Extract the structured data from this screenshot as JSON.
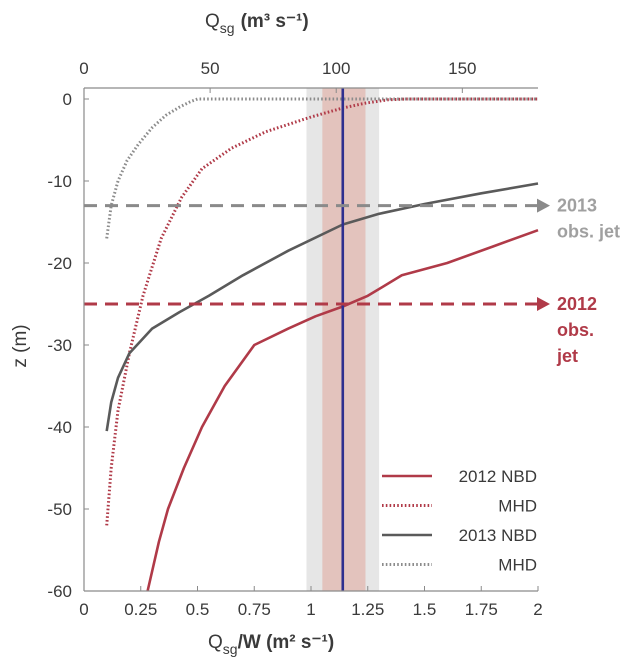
{
  "chart_data": {
    "type": "line",
    "xlabel_bottom": {
      "main": "Q",
      "sub": "sg",
      "rest": "/W (m² s⁻¹)"
    },
    "xlabel_top": {
      "main": "Q",
      "sub": "sg",
      "rest": "(m³ s⁻¹)"
    },
    "ylabel": "z (m)",
    "xlim_bottom": [
      0,
      2
    ],
    "xlim_top": [
      0,
      180
    ],
    "ylim": [
      -60,
      2
    ],
    "xticks_bottom": [
      "0",
      "0.25",
      "0.5",
      "0.75",
      "1",
      "1.25",
      "1.5",
      "1.75",
      "2"
    ],
    "xticks_bottom_values": [
      0,
      0.25,
      0.5,
      0.75,
      1,
      1.25,
      1.5,
      1.75,
      2
    ],
    "xticks_top": [
      "0",
      "50",
      "100",
      "150"
    ],
    "xticks_top_values": [
      0,
      50,
      100,
      150
    ],
    "yticks": [
      "0",
      "-10",
      "-20",
      "-30",
      "-40",
      "-50",
      "-60"
    ],
    "yticks_values": [
      0,
      -10,
      -20,
      -30,
      -40,
      -50,
      -60
    ],
    "grid": false,
    "colors": {
      "red": "#b03a48",
      "gray": "#5a5a5a",
      "lightgray_line": "#8c8c8c",
      "jet2013": "#8a8a8a",
      "jet2013_text": "#a0a0a0",
      "blue": "#2e2f8f",
      "band_outer": "#e6e6e6",
      "band_inner": "#e3c3bd"
    },
    "vertical_line": {
      "x": 1.14
    },
    "bands": [
      {
        "x0": 0.98,
        "x1": 1.3,
        "kind": "outer"
      },
      {
        "x0": 1.05,
        "x1": 1.24,
        "kind": "inner"
      }
    ],
    "jets": [
      {
        "z": -13,
        "label_lines": [
          "2013",
          "obs. jet"
        ],
        "color_key": "jet2013",
        "text_color_key": "jet2013_text"
      },
      {
        "z": -25,
        "label_lines": [
          "2012",
          "obs.",
          "jet"
        ],
        "color_key": "red",
        "text_color_key": "red"
      }
    ],
    "series": [
      {
        "name": "2012 NBD",
        "style": "solid",
        "color_key": "red",
        "x": [
          0.28,
          0.33,
          0.37,
          0.44,
          0.52,
          0.62,
          0.75,
          0.9,
          1.02,
          1.14,
          1.25,
          1.4,
          1.6,
          1.8,
          2.0
        ],
        "y": [
          -60,
          -54,
          -50,
          -45,
          -40,
          -35,
          -30,
          -28,
          -26.5,
          -25.3,
          -24,
          -21.5,
          -20,
          -18,
          -16
        ]
      },
      {
        "name": "MHD",
        "style": "dotted",
        "color_key": "red",
        "x": [
          0.1,
          0.12,
          0.15,
          0.2,
          0.26,
          0.34,
          0.43,
          0.52,
          0.65,
          0.8,
          1.0,
          1.14,
          1.24,
          1.34,
          1.42,
          2.0
        ],
        "y": [
          -52,
          -45,
          -38,
          -31,
          -24,
          -17,
          -12,
          -8.5,
          -6,
          -4,
          -2.2,
          -1.1,
          -0.5,
          -0.1,
          0,
          0
        ]
      },
      {
        "name": "2013 NBD",
        "style": "solid",
        "color_key": "gray",
        "x": [
          0.1,
          0.12,
          0.15,
          0.2,
          0.3,
          0.42,
          0.55,
          0.7,
          0.9,
          1.14,
          1.3,
          1.5,
          1.75,
          2.0
        ],
        "y": [
          -40.5,
          -37,
          -34,
          -31,
          -28,
          -26,
          -24,
          -21.5,
          -18.5,
          -15.3,
          -14,
          -12.8,
          -11.5,
          -10.3
        ]
      },
      {
        "name": "MHD",
        "style": "dotted",
        "color_key": "lightgray_line",
        "x": [
          0.1,
          0.12,
          0.15,
          0.19,
          0.24,
          0.3,
          0.36,
          0.42,
          0.47,
          0.5,
          2.0
        ],
        "y": [
          -17,
          -13,
          -10,
          -7.5,
          -5.5,
          -3.5,
          -2,
          -1,
          -0.3,
          0,
          0
        ]
      }
    ],
    "legend": {
      "placement": "bottom-right",
      "entries": [
        {
          "label": "2012 NBD",
          "style": "solid",
          "color_key": "red"
        },
        {
          "label": "MHD",
          "style": "dotted",
          "color_key": "red"
        },
        {
          "label": "2013 NBD",
          "style": "solid",
          "color_key": "gray"
        },
        {
          "label": "MHD",
          "style": "dotted",
          "color_key": "lightgray_line"
        }
      ]
    }
  }
}
